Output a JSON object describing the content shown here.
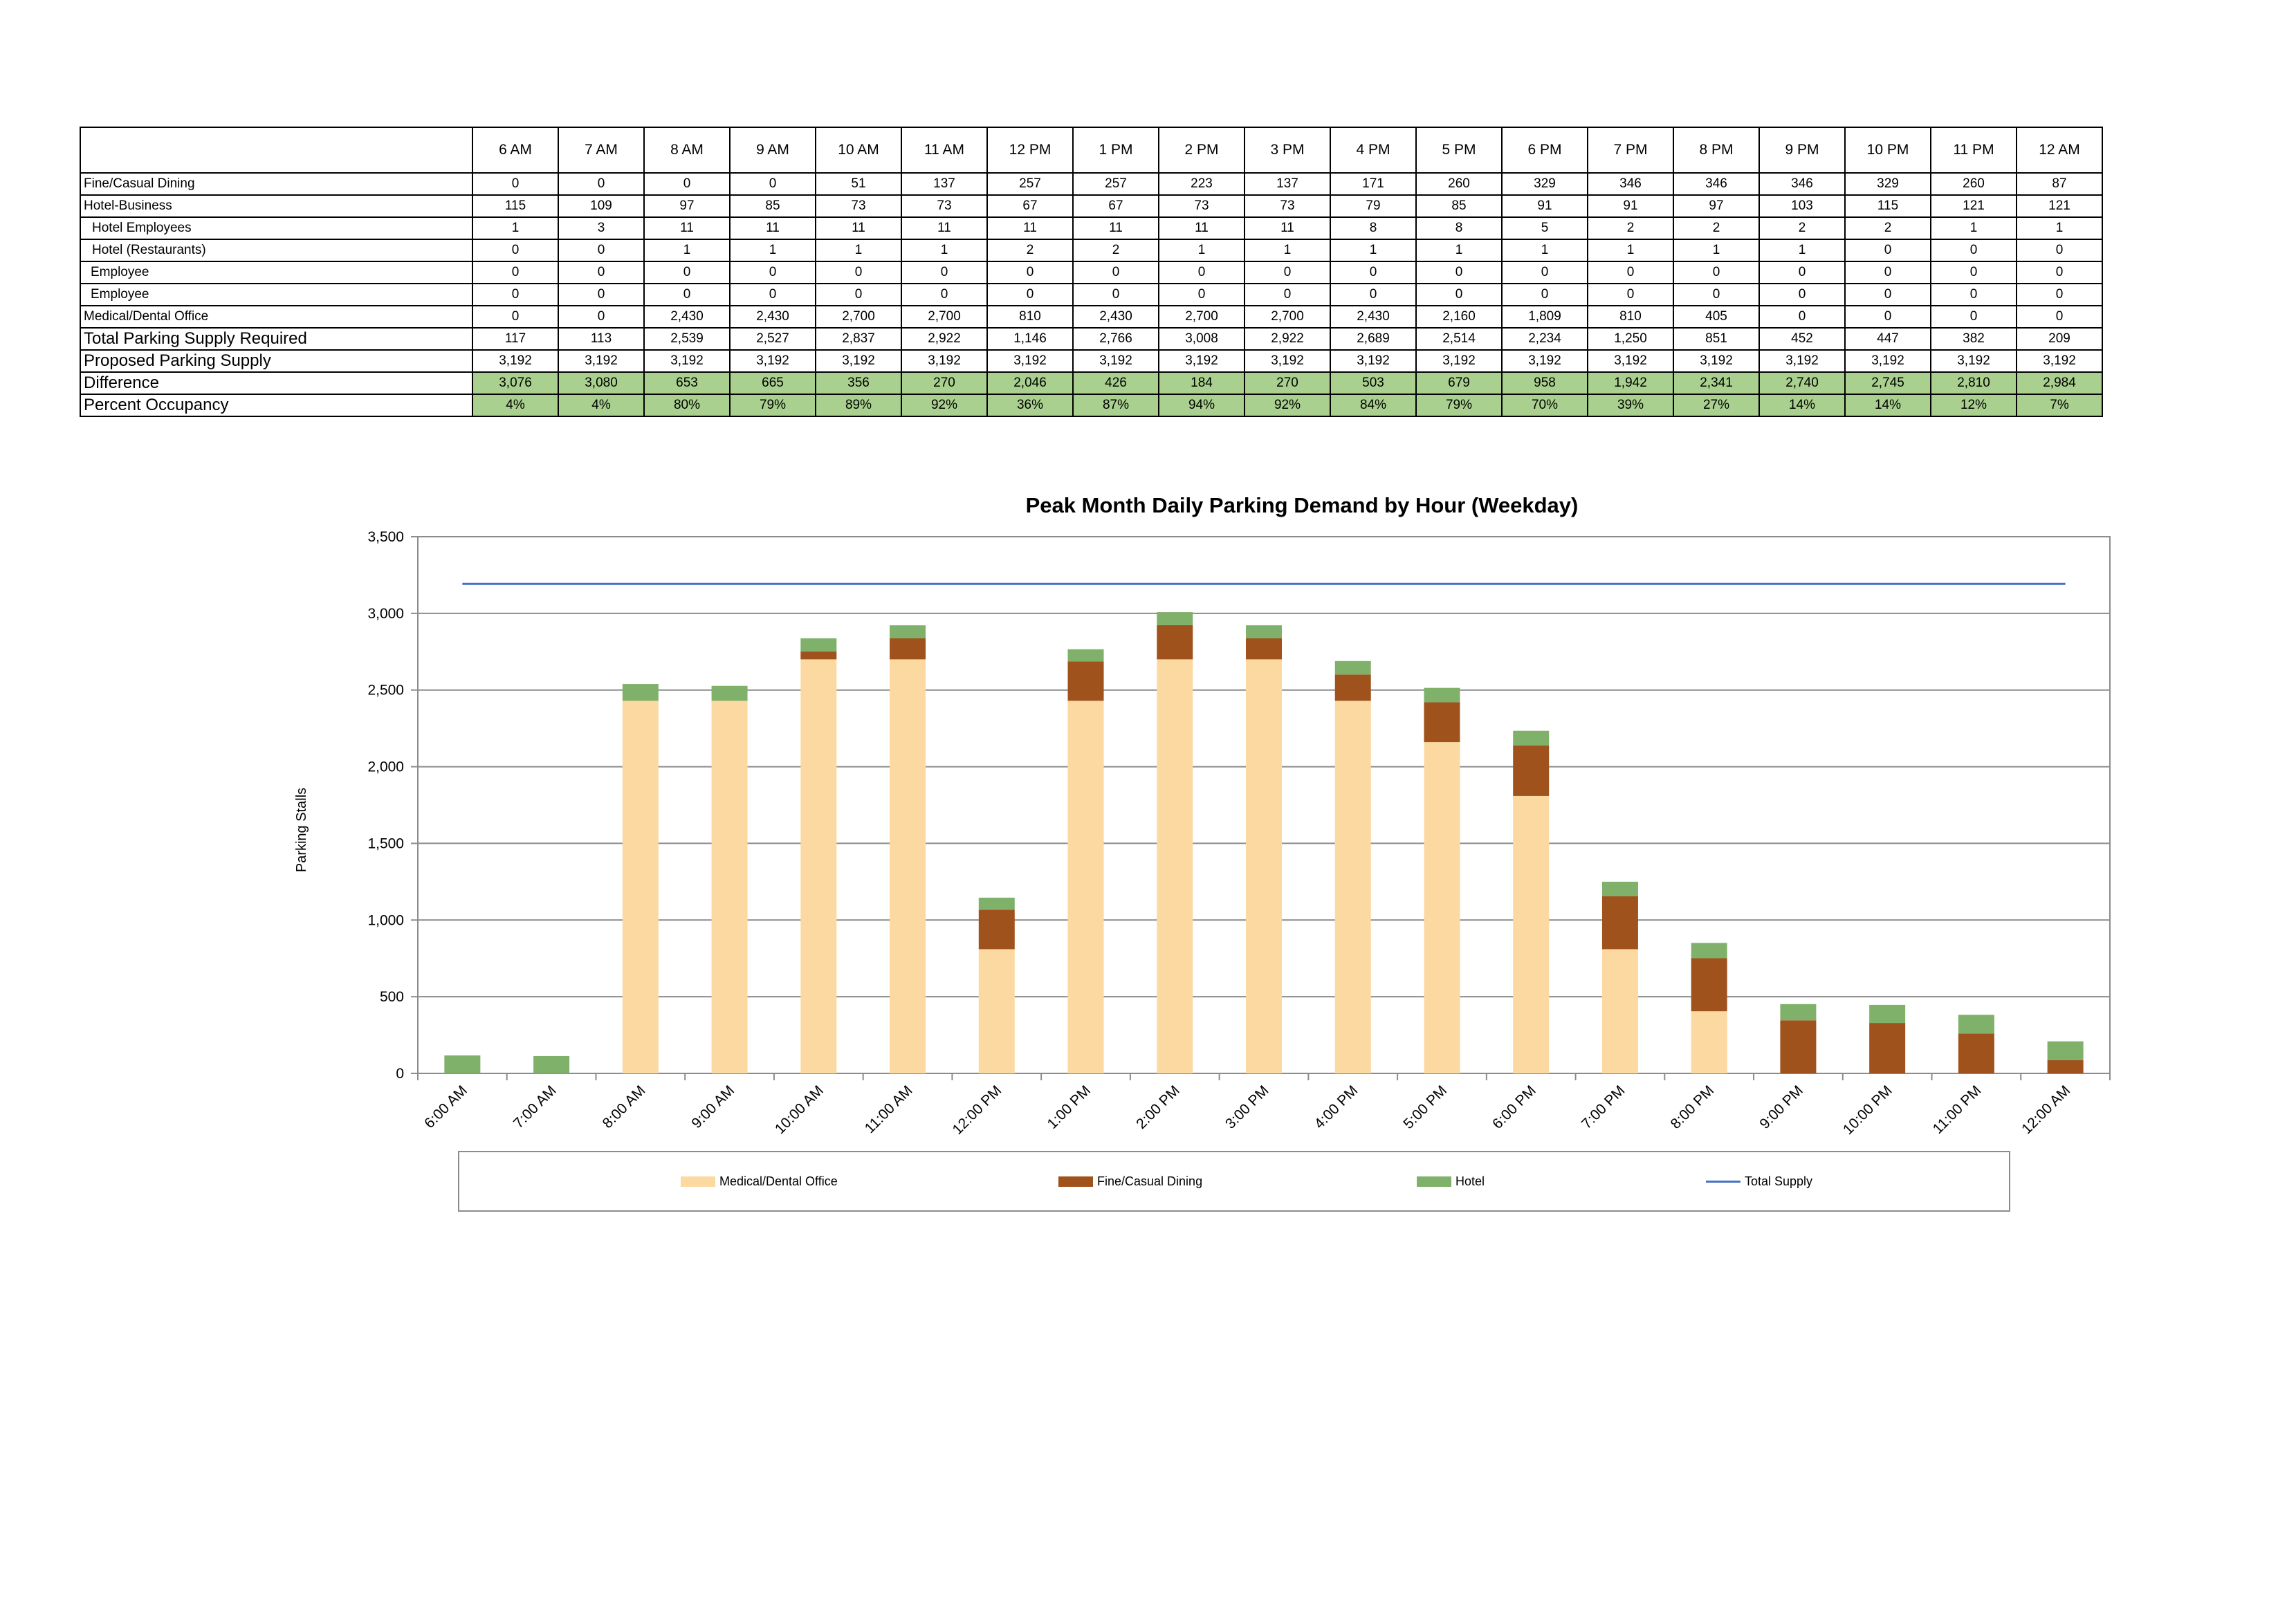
{
  "table": {
    "columns": [
      "6 AM",
      "7 AM",
      "8 AM",
      "9 AM",
      "10 AM",
      "11 AM",
      "12 PM",
      "1 PM",
      "2 PM",
      "3 PM",
      "4 PM",
      "5 PM",
      "6 PM",
      "7 PM",
      "8 PM",
      "9 PM",
      "10 PM",
      "11 PM",
      "12 AM"
    ],
    "rows": [
      {
        "label": "Fine/Casual Dining",
        "indent": 0,
        "big": false,
        "green": false,
        "values": [
          "0",
          "0",
          "0",
          "0",
          "51",
          "137",
          "257",
          "257",
          "223",
          "137",
          "171",
          "260",
          "329",
          "346",
          "346",
          "346",
          "329",
          "260",
          "87"
        ]
      },
      {
        "label": "Hotel-Business",
        "indent": 0,
        "big": false,
        "green": false,
        "values": [
          "115",
          "109",
          "97",
          "85",
          "73",
          "73",
          "67",
          "67",
          "73",
          "73",
          "79",
          "85",
          "91",
          "91",
          "97",
          "103",
          "115",
          "121",
          "121"
        ]
      },
      {
        "label": "Hotel Employees",
        "indent": 1,
        "big": false,
        "green": false,
        "values": [
          "1",
          "3",
          "11",
          "11",
          "11",
          "11",
          "11",
          "11",
          "11",
          "11",
          "8",
          "8",
          "5",
          "2",
          "2",
          "2",
          "2",
          "1",
          "1"
        ]
      },
      {
        "label": "Hotel (Restaurants)",
        "indent": 1,
        "big": false,
        "green": false,
        "values": [
          "0",
          "0",
          "1",
          "1",
          "1",
          "1",
          "2",
          "2",
          "1",
          "1",
          "1",
          "1",
          "1",
          "1",
          "1",
          "1",
          "0",
          "0",
          "0"
        ]
      },
      {
        "label": "Employee",
        "indent": 2,
        "big": false,
        "green": false,
        "values": [
          "0",
          "0",
          "0",
          "0",
          "0",
          "0",
          "0",
          "0",
          "0",
          "0",
          "0",
          "0",
          "0",
          "0",
          "0",
          "0",
          "0",
          "0",
          "0"
        ]
      },
      {
        "label": "Employee",
        "indent": 2,
        "big": false,
        "green": false,
        "values": [
          "0",
          "0",
          "0",
          "0",
          "0",
          "0",
          "0",
          "0",
          "0",
          "0",
          "0",
          "0",
          "0",
          "0",
          "0",
          "0",
          "0",
          "0",
          "0"
        ]
      },
      {
        "label": "Medical/Dental Office",
        "indent": 0,
        "big": false,
        "green": false,
        "values": [
          "0",
          "0",
          "2,430",
          "2,430",
          "2,700",
          "2,700",
          "810",
          "2,430",
          "2,700",
          "2,700",
          "2,430",
          "2,160",
          "1,809",
          "810",
          "405",
          "0",
          "0",
          "0",
          "0"
        ]
      },
      {
        "label": "Total Parking Supply Required",
        "indent": 0,
        "big": true,
        "green": false,
        "values": [
          "117",
          "113",
          "2,539",
          "2,527",
          "2,837",
          "2,922",
          "1,146",
          "2,766",
          "3,008",
          "2,922",
          "2,689",
          "2,514",
          "2,234",
          "1,250",
          "851",
          "452",
          "447",
          "382",
          "209"
        ]
      },
      {
        "label": "Proposed Parking Supply",
        "indent": 0,
        "big": true,
        "green": false,
        "values": [
          "3,192",
          "3,192",
          "3,192",
          "3,192",
          "3,192",
          "3,192",
          "3,192",
          "3,192",
          "3,192",
          "3,192",
          "3,192",
          "3,192",
          "3,192",
          "3,192",
          "3,192",
          "3,192",
          "3,192",
          "3,192",
          "3,192"
        ]
      },
      {
        "label": "Difference",
        "indent": 0,
        "big": true,
        "green": true,
        "values": [
          "3,076",
          "3,080",
          "653",
          "665",
          "356",
          "270",
          "2,046",
          "426",
          "184",
          "270",
          "503",
          "679",
          "958",
          "1,942",
          "2,341",
          "2,740",
          "2,745",
          "2,810",
          "2,984"
        ]
      },
      {
        "label": "Percent Occupancy",
        "indent": 0,
        "big": true,
        "green": true,
        "values": [
          "4%",
          "4%",
          "80%",
          "79%",
          "89%",
          "92%",
          "36%",
          "87%",
          "94%",
          "92%",
          "84%",
          "79%",
          "70%",
          "39%",
          "27%",
          "14%",
          "14%",
          "12%",
          "7%"
        ]
      }
    ]
  },
  "chart_data": {
    "type": "bar",
    "stacked": true,
    "title": "Peak Month Daily Parking Demand by Hour (Weekday)",
    "xlabel": "",
    "ylabel": "Parking Stalls",
    "ylim": [
      0,
      3500
    ],
    "yticks": [
      0,
      500,
      1000,
      1500,
      2000,
      2500,
      3000,
      3500
    ],
    "ytick_labels": [
      "0",
      "500",
      "1,000",
      "1,500",
      "2,000",
      "2,500",
      "3,000",
      "3,500"
    ],
    "grid": true,
    "legend_position": "bottom",
    "categories": [
      "6:00 AM",
      "7:00 AM",
      "8:00 AM",
      "9:00 AM",
      "10:00 AM",
      "11:00 AM",
      "12:00 PM",
      "1:00 PM",
      "2:00 PM",
      "3:00 PM",
      "4:00 PM",
      "5:00 PM",
      "6:00 PM",
      "7:00 PM",
      "8:00 PM",
      "9:00 PM",
      "10:00 PM",
      "11:00 PM",
      "12:00 AM"
    ],
    "series": [
      {
        "name": "Medical/Dental Office",
        "color": "#fcd9a0",
        "values": [
          0,
          0,
          2430,
          2430,
          2700,
          2700,
          810,
          2430,
          2700,
          2700,
          2430,
          2160,
          1809,
          810,
          405,
          0,
          0,
          0,
          0
        ]
      },
      {
        "name": "Fine/Casual Dining",
        "color": "#a0521d",
        "values": [
          0,
          0,
          0,
          0,
          51,
          137,
          257,
          257,
          223,
          137,
          171,
          260,
          329,
          346,
          346,
          346,
          329,
          260,
          87
        ]
      },
      {
        "name": "Hotel",
        "color": "#7fb16a",
        "values": [
          117,
          113,
          109,
          97,
          86,
          85,
          79,
          79,
          85,
          85,
          88,
          94,
          96,
          94,
          100,
          106,
          118,
          122,
          122
        ]
      }
    ],
    "line": {
      "name": "Total Supply",
      "color": "#4472c4",
      "values": [
        3192,
        3192,
        3192,
        3192,
        3192,
        3192,
        3192,
        3192,
        3192,
        3192,
        3192,
        3192,
        3192,
        3192,
        3192,
        3192,
        3192,
        3192,
        3192
      ]
    }
  }
}
